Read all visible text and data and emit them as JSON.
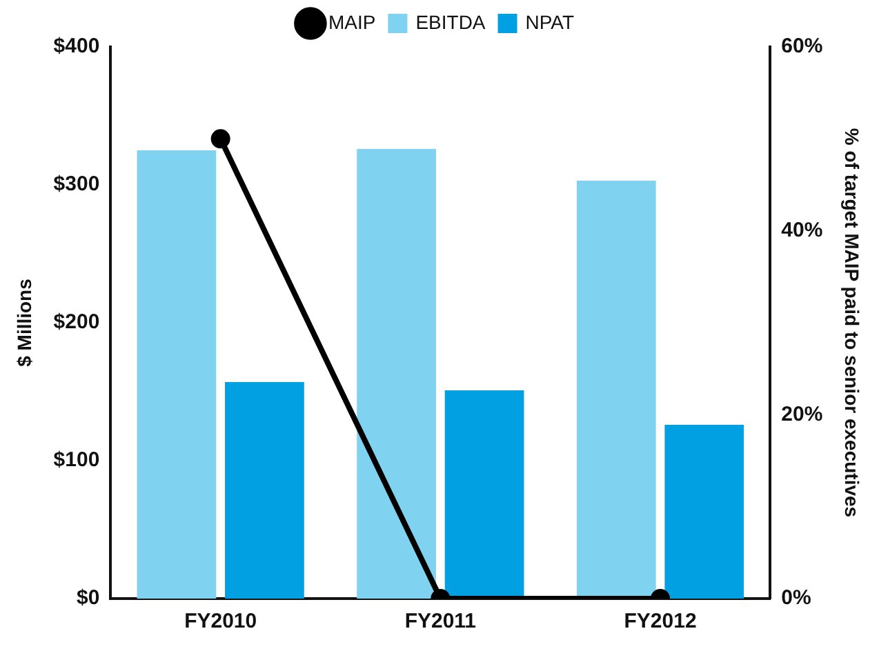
{
  "chart_data": {
    "type": "bar",
    "ylabel": "$ Millions",
    "y2label": "% of target MAIP paid to senior executives",
    "categories": [
      "FY2010",
      "FY2011",
      "FY2012"
    ],
    "series": [
      {
        "name": "EBITDA",
        "color": "#7fd3f0",
        "values": [
          325,
          326,
          303
        ]
      },
      {
        "name": "NPAT",
        "color": "#00a0e3",
        "values": [
          157,
          151,
          126
        ]
      },
      {
        "name": "MAIP",
        "type": "line",
        "axis": "y2",
        "color": "#000000",
        "values": [
          50,
          0,
          0
        ]
      }
    ],
    "ylim": [
      0,
      400
    ],
    "yticks": [
      {
        "value": 0,
        "label": "$0"
      },
      {
        "value": 100,
        "label": "$100"
      },
      {
        "value": 200,
        "label": "$200"
      },
      {
        "value": 300,
        "label": "$300"
      },
      {
        "value": 400,
        "label": "$400"
      }
    ],
    "y2lim": [
      0,
      60
    ],
    "y2ticks": [
      {
        "value": 0,
        "label": "0%"
      },
      {
        "value": 20,
        "label": "20%"
      },
      {
        "value": 40,
        "label": "40%"
      },
      {
        "value": 60,
        "label": "60%"
      }
    ],
    "grid": false,
    "legend": "top",
    "marker": "circle",
    "line_style": "solid"
  }
}
